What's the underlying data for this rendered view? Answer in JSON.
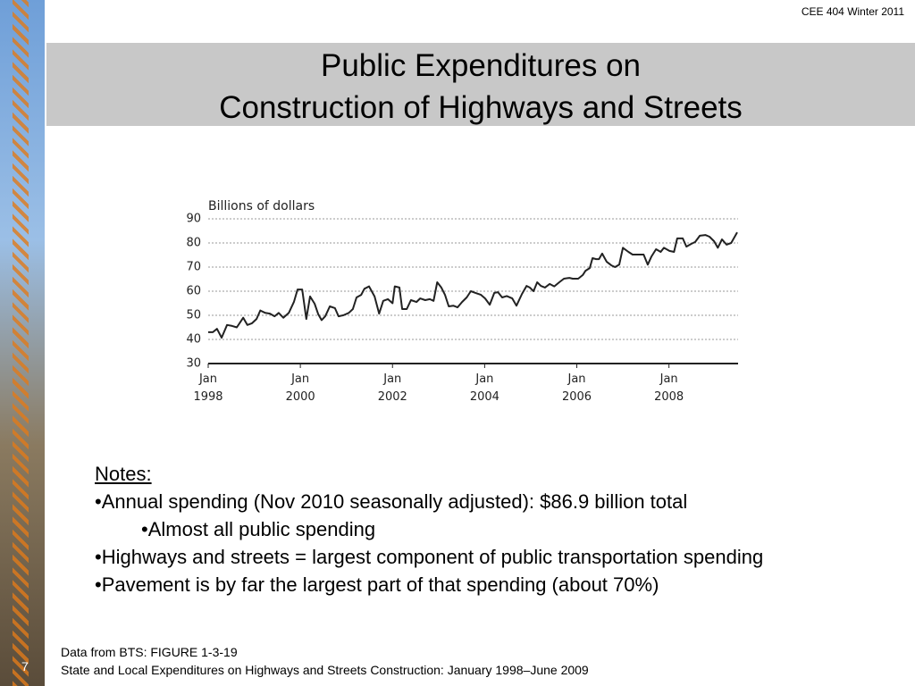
{
  "header": "CEE 404 Winter 2011",
  "title": [
    "Public Expenditures on",
    "Construction of Highways and Streets"
  ],
  "chart_data": {
    "type": "line",
    "ylabel": "Billions of dollars",
    "color": "#222222",
    "grid": true,
    "xlim": [
      1998,
      2009.5
    ],
    "xticks": [
      {
        "value": 1998,
        "label": "Jan 1998"
      },
      {
        "value": 2000,
        "label": "Jan 2000"
      },
      {
        "value": 2002,
        "label": "Jan 2002"
      },
      {
        "value": 2004,
        "label": "Jan 2004"
      },
      {
        "value": 2006,
        "label": "Jan 2006"
      },
      {
        "value": 2008,
        "label": "Jan 2008"
      }
    ],
    "ylim": [
      30,
      90
    ],
    "yticks": [
      30,
      40,
      50,
      60,
      70,
      80,
      90
    ],
    "x": [
      1998.0,
      1998.1,
      1998.19,
      1998.29,
      1998.41,
      1998.52,
      1998.62,
      1998.76,
      1998.85,
      1998.95,
      1999.05,
      1999.13,
      1999.24,
      1999.34,
      1999.44,
      1999.53,
      1999.63,
      1999.75,
      1999.86,
      1999.94,
      2000.04,
      2000.13,
      2000.21,
      2000.31,
      2000.39,
      2000.46,
      2000.54,
      2000.64,
      2000.75,
      2000.83,
      2000.93,
      2001.05,
      2001.14,
      2001.22,
      2001.32,
      2001.39,
      2001.49,
      2001.61,
      2001.71,
      2001.8,
      2001.9,
      2002.0,
      2002.05,
      2002.15,
      2002.21,
      2002.31,
      2002.4,
      2002.52,
      2002.6,
      2002.71,
      2002.81,
      2002.89,
      2002.97,
      2003.06,
      2003.14,
      2003.22,
      2003.32,
      2003.41,
      2003.51,
      2003.61,
      2003.7,
      2003.8,
      2003.92,
      2004.01,
      2004.11,
      2004.21,
      2004.29,
      2004.38,
      2004.48,
      2004.6,
      2004.69,
      2004.81,
      2004.91,
      2004.98,
      2005.06,
      2005.14,
      2005.22,
      2005.31,
      2005.41,
      2005.51,
      2005.62,
      2005.72,
      2005.84,
      2005.91,
      2006.03,
      2006.13,
      2006.19,
      2006.28,
      2006.34,
      2006.42,
      2006.48,
      2006.55,
      2006.65,
      2006.75,
      2006.83,
      2006.92,
      2007.0,
      2007.12,
      2007.21,
      2007.33,
      2007.45,
      2007.54,
      2007.62,
      2007.72,
      2007.82,
      2007.89,
      2008.01,
      2008.11,
      2008.18,
      2008.3,
      2008.38,
      2008.48,
      2008.57,
      2008.67,
      2008.79,
      2008.88,
      2008.98,
      2009.06,
      2009.15,
      2009.25,
      2009.35,
      2009.48
    ],
    "values": [
      43,
      43,
      44.4,
      40.7,
      46,
      45.6,
      45,
      49,
      46,
      46.7,
      48.5,
      52,
      51,
      50.7,
      49.6,
      51,
      49,
      51,
      55.5,
      60.7,
      60.7,
      48.5,
      57.8,
      54.8,
      50.4,
      48,
      49.6,
      53.7,
      53,
      49.6,
      50,
      51,
      52.6,
      57.4,
      58.5,
      61,
      62,
      57.8,
      50.7,
      56,
      56.7,
      55,
      62,
      61.5,
      52.6,
      52.6,
      56.3,
      55.5,
      57,
      56.3,
      56.7,
      56,
      63.7,
      61.5,
      58.5,
      53.7,
      54,
      53.3,
      55.5,
      57.4,
      60,
      59.3,
      58.5,
      57,
      54.4,
      59.3,
      59.6,
      57.4,
      58,
      57,
      54,
      58.9,
      62.2,
      61.5,
      60,
      63.7,
      62.2,
      61.5,
      63,
      62,
      63.7,
      65.2,
      65.5,
      65.2,
      65.2,
      66.7,
      68.5,
      69.6,
      73.7,
      73.3,
      73.3,
      75.6,
      72.2,
      70.7,
      70,
      71,
      78,
      76.3,
      75.2,
      75.2,
      75.2,
      71,
      74.4,
      77.4,
      76.3,
      78,
      76.7,
      76.3,
      81.9,
      81.9,
      78.5,
      79.6,
      80.4,
      83,
      83.3,
      82.6,
      80.7,
      78,
      81.5,
      79.3,
      80,
      84.4
    ]
  },
  "notes": {
    "heading": "Notes:",
    "items": [
      {
        "text": "•Annual spending (Nov 2010 seasonally adjusted): $86.9 billion total",
        "level": 1
      },
      {
        "text": "•Almost all public spending",
        "level": 2
      },
      {
        "text": "•Highways and streets = largest component of public transportation spending",
        "level": 1
      },
      {
        "text": "•Pavement is by far the largest part of that spending (about 70%)",
        "level": 1
      }
    ]
  },
  "footer": [
    "Data from BTS: FIGURE 1-3-19",
    "State and Local Expenditures on Highways and Streets Construction: January 1998–June 2009"
  ],
  "slide_number": "7"
}
